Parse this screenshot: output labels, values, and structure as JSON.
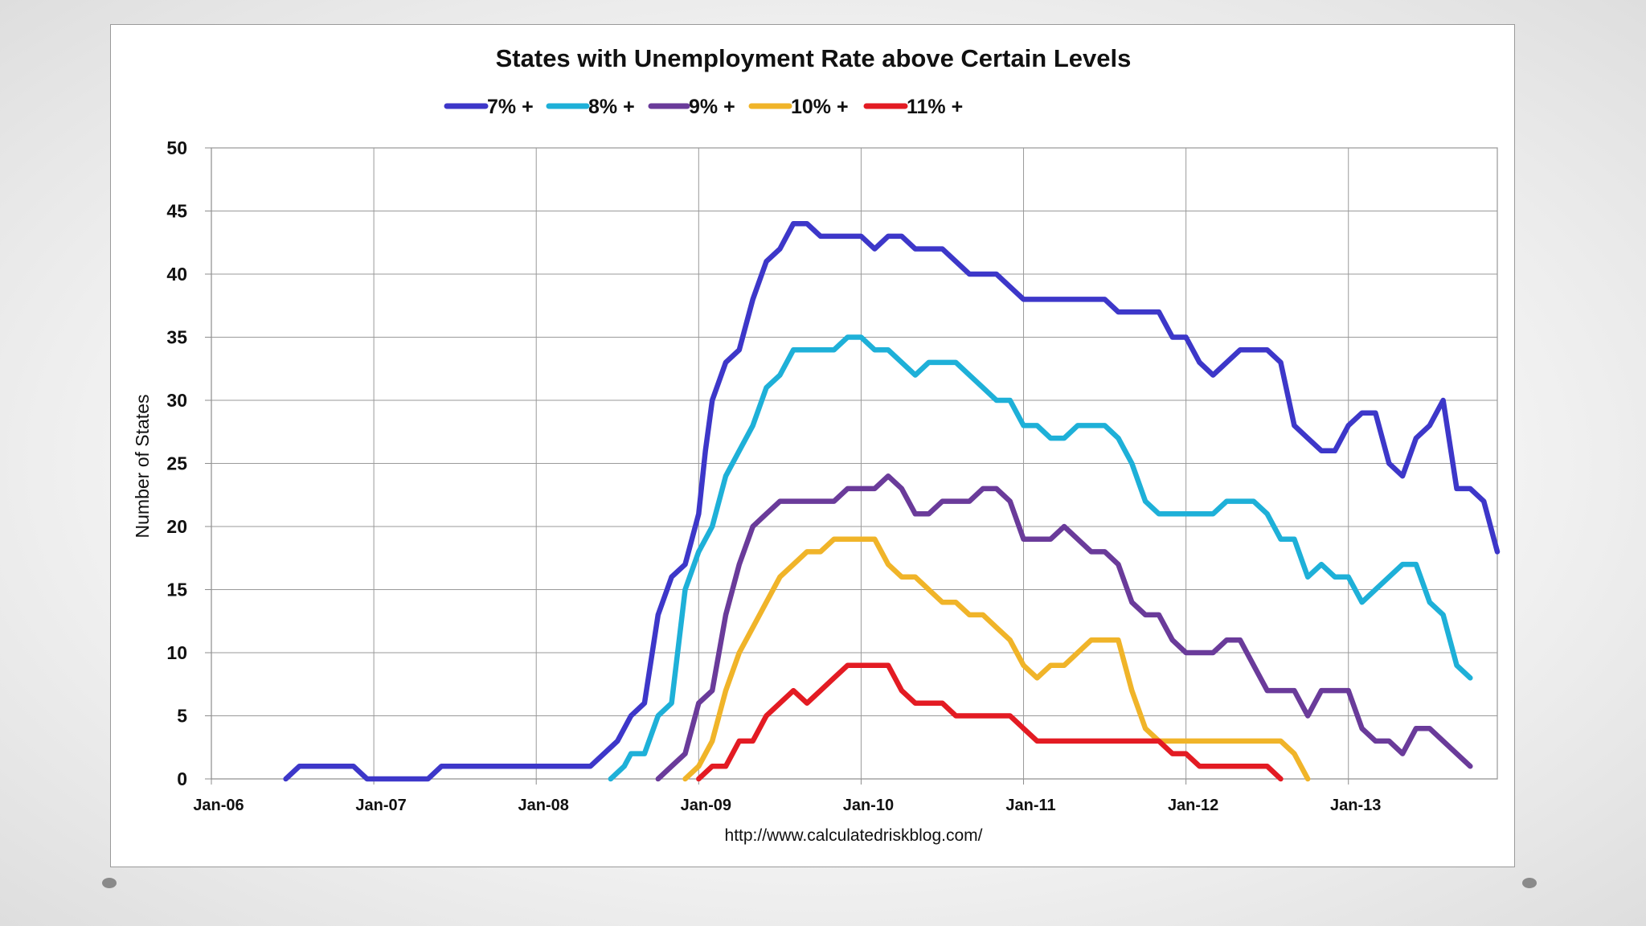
{
  "chart_data": {
    "type": "line",
    "title": "States with Unemployment Rate above Certain Levels",
    "xlabel": "",
    "ylabel": "Number of States",
    "ylim": [
      0,
      50
    ],
    "yticks": [
      0,
      5,
      10,
      15,
      20,
      25,
      30,
      35,
      40,
      45,
      50
    ],
    "xrange_months": [
      0,
      95
    ],
    "xtick_labels": [
      "Jan-06",
      "Jan-07",
      "Jan-08",
      "Jan-09",
      "Jan-10",
      "Jan-11",
      "Jan-12",
      "Jan-13"
    ],
    "xtick_positions_months": [
      0,
      12,
      24,
      36,
      48,
      60,
      72,
      84
    ],
    "grid": true,
    "legend_position": "top-center",
    "source": "http://www.calculatedriskblog.com/",
    "series": [
      {
        "name": "7% +",
        "color": "#3d37c9",
        "points": [
          [
            5.5,
            0
          ],
          [
            6.5,
            1
          ],
          [
            9,
            1
          ],
          [
            10.5,
            1
          ],
          [
            11.5,
            0
          ],
          [
            16,
            0
          ],
          [
            17,
            1
          ],
          [
            20,
            1
          ],
          [
            24,
            1
          ],
          [
            28,
            1
          ],
          [
            29,
            2
          ],
          [
            30,
            3
          ],
          [
            31,
            5
          ],
          [
            32,
            6
          ],
          [
            33,
            13
          ],
          [
            34,
            16
          ],
          [
            35,
            17
          ],
          [
            36,
            21
          ],
          [
            36.5,
            26
          ],
          [
            37,
            30
          ],
          [
            38,
            33
          ],
          [
            39,
            34
          ],
          [
            40,
            38
          ],
          [
            41,
            41
          ],
          [
            42,
            42
          ],
          [
            43,
            44
          ],
          [
            44,
            44
          ],
          [
            45,
            43
          ],
          [
            46,
            43
          ],
          [
            48,
            43
          ],
          [
            49,
            42
          ],
          [
            50,
            43
          ],
          [
            51,
            43
          ],
          [
            52,
            42
          ],
          [
            54,
            42
          ],
          [
            55,
            41
          ],
          [
            56,
            40
          ],
          [
            58,
            40
          ],
          [
            59,
            39
          ],
          [
            60,
            38
          ],
          [
            64,
            38
          ],
          [
            66,
            38
          ],
          [
            67,
            37
          ],
          [
            70,
            37
          ],
          [
            71,
            35
          ],
          [
            72,
            35
          ],
          [
            73,
            33
          ],
          [
            74,
            32
          ],
          [
            75,
            33
          ],
          [
            76,
            34
          ],
          [
            78,
            34
          ],
          [
            79,
            33
          ],
          [
            80,
            28
          ],
          [
            81,
            27
          ],
          [
            82,
            26
          ],
          [
            83,
            26
          ],
          [
            84,
            28
          ],
          [
            85,
            29
          ],
          [
            86,
            29
          ],
          [
            87,
            25
          ],
          [
            88,
            24
          ],
          [
            89,
            27
          ],
          [
            90,
            28
          ],
          [
            91,
            30
          ],
          [
            92,
            23
          ],
          [
            93,
            23
          ],
          [
            94,
            22
          ],
          [
            95,
            18
          ]
        ]
      },
      {
        "name": "8% +",
        "color": "#1eb0d8",
        "points": [
          [
            29.5,
            0
          ],
          [
            30.5,
            1
          ],
          [
            31,
            2
          ],
          [
            32,
            2
          ],
          [
            33,
            5
          ],
          [
            34,
            6
          ],
          [
            35,
            15
          ],
          [
            36,
            18
          ],
          [
            37,
            20
          ],
          [
            38,
            24
          ],
          [
            39,
            26
          ],
          [
            40,
            28
          ],
          [
            41,
            31
          ],
          [
            42,
            32
          ],
          [
            43,
            34
          ],
          [
            45,
            34
          ],
          [
            46,
            34
          ],
          [
            47,
            35
          ],
          [
            48,
            35
          ],
          [
            49,
            34
          ],
          [
            50,
            34
          ],
          [
            51,
            33
          ],
          [
            52,
            32
          ],
          [
            53,
            33
          ],
          [
            55,
            33
          ],
          [
            56,
            32
          ],
          [
            57,
            31
          ],
          [
            58,
            30
          ],
          [
            59,
            30
          ],
          [
            60,
            28
          ],
          [
            61,
            28
          ],
          [
            62,
            27
          ],
          [
            63,
            27
          ],
          [
            64,
            28
          ],
          [
            66,
            28
          ],
          [
            67,
            27
          ],
          [
            68,
            25
          ],
          [
            69,
            22
          ],
          [
            70,
            21
          ],
          [
            73,
            21
          ],
          [
            74,
            21
          ],
          [
            75,
            22
          ],
          [
            77,
            22
          ],
          [
            78,
            21
          ],
          [
            79,
            19
          ],
          [
            80,
            19
          ],
          [
            81,
            16
          ],
          [
            82,
            17
          ],
          [
            83,
            16
          ],
          [
            84,
            16
          ],
          [
            85,
            14
          ],
          [
            86,
            15
          ],
          [
            87,
            16
          ],
          [
            88,
            17
          ],
          [
            89,
            17
          ],
          [
            90,
            14
          ],
          [
            91,
            13
          ],
          [
            92,
            9
          ],
          [
            93,
            8
          ]
        ]
      },
      {
        "name": "9% +",
        "color": "#6a3b9a",
        "points": [
          [
            33,
            0
          ],
          [
            34,
            1
          ],
          [
            35,
            2
          ],
          [
            36,
            6
          ],
          [
            37,
            7
          ],
          [
            38,
            13
          ],
          [
            39,
            17
          ],
          [
            40,
            20
          ],
          [
            41,
            21
          ],
          [
            42,
            22
          ],
          [
            45,
            22
          ],
          [
            46,
            22
          ],
          [
            47,
            23
          ],
          [
            48,
            23
          ],
          [
            49,
            23
          ],
          [
            50,
            24
          ],
          [
            51,
            23
          ],
          [
            52,
            21
          ],
          [
            53,
            21
          ],
          [
            54,
            22
          ],
          [
            56,
            22
          ],
          [
            57,
            23
          ],
          [
            58,
            23
          ],
          [
            59,
            22
          ],
          [
            60,
            19
          ],
          [
            62,
            19
          ],
          [
            63,
            20
          ],
          [
            65,
            18
          ],
          [
            66,
            18
          ],
          [
            67,
            17
          ],
          [
            68,
            14
          ],
          [
            69,
            13
          ],
          [
            70,
            13
          ],
          [
            71,
            11
          ],
          [
            72,
            10
          ],
          [
            73,
            10
          ],
          [
            74,
            10
          ],
          [
            75,
            11
          ],
          [
            76,
            11
          ],
          [
            77,
            9
          ],
          [
            78,
            7
          ],
          [
            80,
            7
          ],
          [
            81,
            5
          ],
          [
            82,
            7
          ],
          [
            84,
            7
          ],
          [
            85,
            4
          ],
          [
            86,
            3
          ],
          [
            87,
            3
          ],
          [
            88,
            2
          ],
          [
            89,
            4
          ],
          [
            90,
            4
          ],
          [
            91,
            3
          ],
          [
            92,
            2
          ],
          [
            93,
            1
          ]
        ]
      },
      {
        "name": "10% +",
        "color": "#f0b429",
        "points": [
          [
            35,
            0
          ],
          [
            36,
            1
          ],
          [
            37,
            3
          ],
          [
            38,
            7
          ],
          [
            39,
            10
          ],
          [
            40,
            12
          ],
          [
            41,
            14
          ],
          [
            42,
            16
          ],
          [
            43,
            17
          ],
          [
            44,
            18
          ],
          [
            45,
            18
          ],
          [
            46,
            19
          ],
          [
            49,
            19
          ],
          [
            50,
            17
          ],
          [
            51,
            16
          ],
          [
            52,
            16
          ],
          [
            53,
            15
          ],
          [
            54,
            14
          ],
          [
            55,
            14
          ],
          [
            56,
            13
          ],
          [
            57,
            13
          ],
          [
            58,
            12
          ],
          [
            59,
            11
          ],
          [
            60,
            9
          ],
          [
            61,
            8
          ],
          [
            62,
            9
          ],
          [
            63,
            9
          ],
          [
            64,
            10
          ],
          [
            65,
            11
          ],
          [
            66,
            11
          ],
          [
            67,
            11
          ],
          [
            68,
            7
          ],
          [
            69,
            4
          ],
          [
            70,
            3
          ],
          [
            72,
            3
          ],
          [
            78,
            3
          ],
          [
            79,
            3
          ],
          [
            80,
            2
          ],
          [
            81,
            0
          ]
        ]
      },
      {
        "name": "11% +",
        "color": "#e31b23",
        "points": [
          [
            36,
            0
          ],
          [
            37,
            1
          ],
          [
            38,
            1
          ],
          [
            39,
            3
          ],
          [
            40,
            3
          ],
          [
            41,
            5
          ],
          [
            42,
            6
          ],
          [
            43,
            7
          ],
          [
            44,
            6
          ],
          [
            45,
            7
          ],
          [
            46,
            8
          ],
          [
            47,
            9
          ],
          [
            50,
            9
          ],
          [
            51,
            7
          ],
          [
            52,
            6
          ],
          [
            53,
            6
          ],
          [
            54,
            6
          ],
          [
            55,
            5
          ],
          [
            56,
            5
          ],
          [
            58,
            5
          ],
          [
            59,
            5
          ],
          [
            60,
            4
          ],
          [
            61,
            3
          ],
          [
            62,
            3
          ],
          [
            66,
            3
          ],
          [
            70,
            3
          ],
          [
            71,
            2
          ],
          [
            72,
            2
          ],
          [
            73,
            1
          ],
          [
            75,
            1
          ],
          [
            76,
            1
          ],
          [
            78,
            1
          ],
          [
            79,
            0
          ]
        ]
      }
    ]
  }
}
